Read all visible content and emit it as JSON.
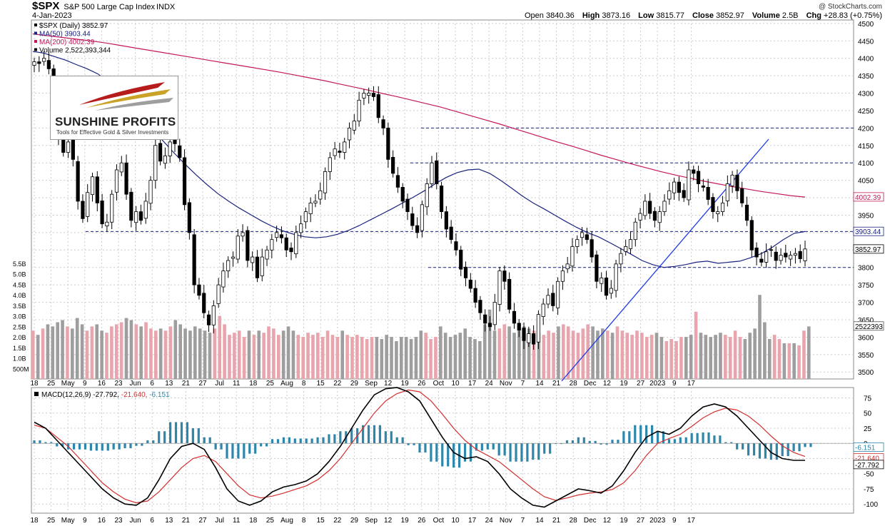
{
  "header": {
    "symbol": "$SPX",
    "name": "S&P 500 Large Cap Index",
    "exchange": "INDX",
    "date": "4-Jan-2023",
    "credit": "@ StockCharts.com",
    "ohlc": {
      "open_label": "Open",
      "open": "3840.36",
      "high_label": "High",
      "high": "3873.16",
      "low_label": "Low",
      "low": "3815.77",
      "close_label": "Close",
      "close": "3852.97",
      "volume_label": "Volume",
      "volume": "2.5B",
      "chg_label": "Chg",
      "chg": "+28.83 (+0.75%)"
    }
  },
  "logo": {
    "brand": "SUNSHINE PROFITS",
    "tagline": "Tools for Effective Gold & Silver Investments"
  },
  "legend": [
    {
      "text": "$SPX (Daily) 3852.97",
      "color": "#000000"
    },
    {
      "text": "MA(50) 3903.44",
      "color": "#1a237e"
    },
    {
      "text": "MA(200) 4002.39",
      "color": "#c2185b"
    },
    {
      "text": "Volume 2,522,393,344",
      "color": "#000000"
    }
  ],
  "macd_legend": {
    "label": "MACD(12,26,9)",
    "v1": "-27.792",
    "v2": "-21.640",
    "v3": "-6.151"
  },
  "tags": {
    "ma200": "4002.39",
    "ma50": "3903.44",
    "close": "3852.97",
    "volume": "2522393",
    "hist": "-6.151",
    "signal": "-21.640",
    "macd": "-27.792"
  },
  "colors": {
    "up": "#ffffff",
    "down": "#000000",
    "ma50": "#1a237e",
    "ma200": "#c2185b",
    "vol_up": "#e9a5ad",
    "vol_down": "#9e9e9e",
    "hist": "#2e86ab",
    "macd": "#000000",
    "signal": "#d32f2f",
    "trend": "#1e3ae6",
    "hline": "#1a237e"
  },
  "chart_data": [
    {
      "type": "candlestick",
      "y_axis_ticks": [
        3500,
        3550,
        3600,
        3650,
        3700,
        3750,
        3800,
        3850,
        3900,
        3950,
        4000,
        4050,
        4100,
        4150,
        4200,
        4250,
        4300,
        4350,
        4400,
        4450,
        4500
      ],
      "ylim": [
        3480,
        4510
      ],
      "x_axis_labels": [
        "18",
        "25",
        "May",
        "9",
        "16",
        "23",
        "Jun",
        "6",
        "13",
        "21",
        "27",
        "Jul",
        "11",
        "18",
        "25",
        "Aug",
        "8",
        "15",
        "22",
        "29",
        "Sep",
        "12",
        "19",
        "26",
        "Oct",
        "10",
        "17",
        "24",
        "Nov",
        "7",
        "14",
        "21",
        "28",
        "Dec",
        "12",
        "19",
        "27",
        "2023",
        "9",
        "17"
      ],
      "close_series": [
        4390,
        4385,
        4400,
        4370,
        4295,
        4175,
        4130,
        4160,
        4110,
        3990,
        3940,
        4015,
        4060,
        3985,
        3925,
        3930,
        4010,
        4080,
        4100,
        4010,
        3935,
        3960,
        3935,
        3990,
        4050,
        4150,
        4105,
        4120,
        4160,
        4155,
        4115,
        3980,
        3900,
        3750,
        3720,
        3670,
        3635,
        3690,
        3750,
        3790,
        3820,
        3830,
        3890,
        3900,
        3820,
        3830,
        3770,
        3830,
        3850,
        3880,
        3900,
        3885,
        3850,
        3845,
        3900,
        3925,
        3960,
        3985,
        3990,
        4020,
        4075,
        4115,
        4140,
        4130,
        4160,
        4200,
        4220,
        4280,
        4300,
        4300,
        4290,
        4230,
        4200,
        4110,
        4070,
        4030,
        3990,
        3960,
        3920,
        3900,
        3980,
        4040,
        4100,
        4040,
        3960,
        3910,
        3880,
        3850,
        3795,
        3770,
        3740,
        3700,
        3670,
        3640,
        3630,
        3700,
        3790,
        3760,
        3680,
        3640,
        3620,
        3590,
        3610,
        3580,
        3665,
        3695,
        3720,
        3690,
        3760,
        3790,
        3810,
        3860,
        3880,
        3900,
        3880,
        3830,
        3760,
        3770,
        3720,
        3740,
        3810,
        3840,
        3860,
        3880,
        3930,
        3955,
        3990,
        3955,
        3935,
        3960,
        3990,
        4020,
        4045,
        4015,
        4000,
        4080,
        4070,
        4040,
        4030,
        3995,
        3960,
        3960,
        3985,
        4040,
        4065,
        4020,
        3985,
        3935,
        3850,
        3830,
        3815,
        3845,
        3850,
        3820,
        3835,
        3830,
        3835,
        3840,
        3825,
        3853
      ],
      "ma50_series": [
        4420,
        4415,
        4405,
        4395,
        4382,
        4370,
        4355,
        4330,
        4300,
        4268,
        4232,
        4195,
        4162,
        4128,
        4096,
        4066,
        4038,
        4012,
        3990,
        3970,
        3952,
        3934,
        3918,
        3905,
        3895,
        3888,
        3885,
        3888,
        3895,
        3906,
        3920,
        3936,
        3952,
        3968,
        3985,
        4002,
        4020,
        4040,
        4058,
        4072,
        4080,
        4082,
        4070,
        4050,
        4028,
        4005,
        3985,
        3968,
        3950,
        3932,
        3915,
        3900,
        3888,
        3872,
        3855,
        3838,
        3820,
        3808,
        3800,
        3803,
        3808,
        3815,
        3818,
        3812,
        3815,
        3818,
        3828,
        3840,
        3858,
        3880,
        3898,
        3903
      ],
      "ma200_series": [
        4470,
        4465,
        4460,
        4455,
        4450,
        4444,
        4437,
        4430,
        4423,
        4416,
        4409,
        4402,
        4395,
        4388,
        4381,
        4374,
        4367,
        4360,
        4352,
        4344,
        4336,
        4327,
        4318,
        4309,
        4299,
        4290,
        4280,
        4270,
        4260,
        4248,
        4236,
        4224,
        4212,
        4199,
        4186,
        4173,
        4160,
        4148,
        4135,
        4122,
        4110,
        4098,
        4087,
        4076,
        4066,
        4057,
        4048,
        4040,
        4032,
        4025,
        4018,
        4012,
        4006,
        4002
      ],
      "horizontal_levels": [
        3903,
        3800,
        4100,
        4200
      ],
      "trendline": [
        [
          3485,
          10
        ],
        [
          4150,
          2023
        ]
      ]
    },
    {
      "type": "bar",
      "name": "Volume",
      "y_axis_ticks": [
        "500M",
        "1.0B",
        "1.5B",
        "2.0B",
        "2.5B",
        "3.0B",
        "3.5B",
        "4.0B",
        "4.5B",
        "5.0B",
        "5.5B"
      ],
      "ylim": [
        0,
        5.5
      ],
      "values": [
        2.3,
        2.1,
        2.4,
        2.6,
        2.5,
        2.7,
        2.8,
        2.5,
        2.4,
        2.9,
        2.6,
        2.3,
        2.5,
        2.6,
        2.3,
        2.2,
        2.5,
        2.6,
        2.7,
        2.9,
        2.8,
        2.6,
        2.5,
        2.7,
        2.4,
        2.3,
        2.4,
        2.3,
        2.5,
        2.8,
        2.6,
        2.4,
        2.3,
        2.5,
        2.4,
        2.3,
        2.2,
        2.4,
        3.0,
        2.6,
        2.1,
        2.2,
        2.3,
        2.0,
        2.3,
        2.1,
        2.3,
        2.2,
        2.5,
        2.4,
        2.1,
        2.3,
        2.5,
        2.3,
        2.1,
        2.0,
        2.2,
        2.1,
        2.2,
        2.0,
        2.3,
        2.1,
        2.0,
        2.3,
        2.1,
        2.0,
        2.1,
        2.0,
        1.9,
        2.0,
        2.0,
        1.9,
        2.1,
        2.0,
        1.8,
        2.0,
        2.0,
        1.9,
        2.0,
        2.3,
        2.2,
        1.9,
        2.0,
        2.5,
        2.2,
        2.0,
        2.1,
        2.2,
        2.4,
        2.0,
        1.9,
        1.8,
        2.6,
        3.3,
        2.3,
        2.4,
        2.6,
        2.5,
        2.2,
        2.3,
        2.5,
        2.4,
        2.3,
        2.2,
        2.1,
        2.3,
        2.2,
        2.5,
        2.6,
        2.5,
        2.3,
        2.2,
        2.4,
        2.6,
        2.5,
        2.3,
        2.4,
        2.3,
        2.2,
        2.5,
        2.3,
        2.2,
        2.1,
        2.3,
        2.2,
        2.0,
        2.1,
        2.2,
        2.0,
        1.8,
        1.9,
        1.8,
        2.0,
        2.0,
        2.1,
        3.2,
        2.2,
        2.1,
        2.0,
        2.1,
        2.2,
        2.1,
        2.0,
        2.3,
        2.0,
        1.9,
        2.2,
        2.4,
        4.0,
        2.7,
        1.9,
        2.1,
        1.9,
        1.7,
        1.7,
        1.7,
        1.6,
        2.3,
        2.5
      ]
    },
    {
      "type": "line",
      "name": "MACD(12,26,9)",
      "y_axis_ticks": [
        75,
        50,
        25,
        0,
        -25,
        -50,
        -75,
        -100
      ],
      "ylim": [
        -115,
        92
      ],
      "macd_series": [
        35,
        25,
        5,
        -15,
        -35,
        -55,
        -75,
        -90,
        -100,
        -102,
        -90,
        -60,
        -25,
        -5,
        0,
        -10,
        -40,
        -75,
        -95,
        -102,
        -95,
        -80,
        -72,
        -68,
        -62,
        -50,
        -30,
        -5,
        25,
        55,
        80,
        90,
        92,
        85,
        70,
        40,
        10,
        -15,
        -25,
        -22,
        -30,
        -50,
        -75,
        -90,
        -102,
        -105,
        -95,
        -85,
        -75,
        -78,
        -82,
        -70,
        -45,
        -15,
        10,
        20,
        15,
        25,
        45,
        60,
        65,
        60,
        45,
        25,
        5,
        -15,
        -25,
        -28,
        -28
      ],
      "signal_series": [
        30,
        25,
        10,
        -5,
        -25,
        -45,
        -65,
        -80,
        -92,
        -98,
        -95,
        -80,
        -60,
        -40,
        -25,
        -20,
        -30,
        -50,
        -70,
        -85,
        -90,
        -87,
        -82,
        -76,
        -70,
        -60,
        -45,
        -25,
        0,
        25,
        50,
        70,
        82,
        88,
        85,
        70,
        48,
        25,
        5,
        -10,
        -20,
        -30,
        -45,
        -60,
        -75,
        -88,
        -94,
        -90,
        -85,
        -82,
        -80,
        -76,
        -65,
        -45,
        -20,
        0,
        8,
        15,
        28,
        42,
        52,
        58,
        55,
        45,
        30,
        12,
        -4,
        -15,
        -21.6
      ],
      "histogram_series": [
        5,
        2,
        -5,
        -10,
        -10,
        -12,
        -12,
        -10,
        -8,
        -4,
        5,
        20,
        35,
        35,
        25,
        10,
        -10,
        -25,
        -25,
        -17,
        -5,
        7,
        10,
        8,
        8,
        10,
        15,
        20,
        25,
        30,
        30,
        20,
        10,
        -3,
        -15,
        -30,
        -38,
        -40,
        -30,
        -12,
        -10,
        -20,
        -30,
        -30,
        -27,
        -17,
        -1,
        5,
        10,
        4,
        -2,
        6,
        20,
        30,
        30,
        20,
        7,
        10,
        17,
        18,
        13,
        2,
        -10,
        -20,
        -25,
        -27,
        -21,
        -13,
        -6
      ]
    }
  ]
}
